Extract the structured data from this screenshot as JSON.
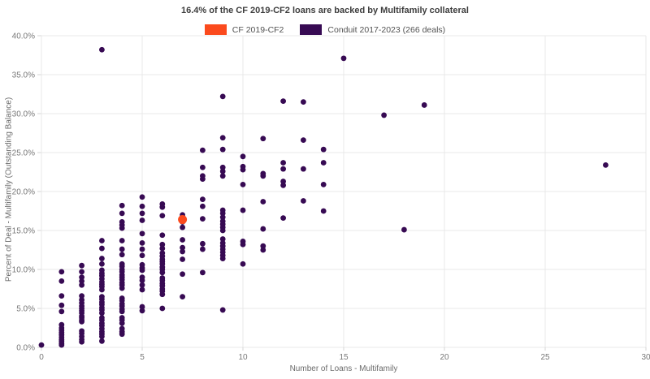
{
  "title": "16.4% of the CF 2019-CF2 loans are backed by Multifamily collateral",
  "legend": {
    "cf_label": "CF 2019-CF2",
    "conduit_label": "Conduit 2017-2023 (266 deals)"
  },
  "colors": {
    "cf": "#fb4a1d",
    "conduit": "#370a53",
    "grid": "#e8e8e8",
    "tick_mark": "#d4d4d4",
    "tick_text": "#787878"
  },
  "chart_data": {
    "type": "scatter",
    "title": "16.4% of the CF 2019-CF2 loans are backed by Multifamily collateral",
    "xlabel": "Number of Loans - Multifamily",
    "ylabel": "Percent of Deal - Multifamily (Outstanding Balance)",
    "xlim": [
      0,
      30
    ],
    "ylim": [
      0,
      40
    ],
    "x_ticks": [
      0,
      5,
      10,
      15,
      20,
      25,
      30
    ],
    "y_ticks": [
      0,
      5,
      10,
      15,
      20,
      25,
      30,
      35,
      40
    ],
    "y_tick_format": "percent_one_decimal",
    "grid": true,
    "legend_position": "top-center",
    "series": [
      {
        "name": "CF 2019-CF2",
        "color": "#fb4a1d",
        "marker_radius": 5.5,
        "points": [
          [
            7,
            16.4
          ]
        ]
      },
      {
        "name": "Conduit 2017-2023 (266 deals)",
        "color": "#370a53",
        "marker_radius": 3.4,
        "points": [
          [
            0,
            0.3
          ],
          [
            1,
            9.7
          ],
          [
            1,
            8.5
          ],
          [
            1,
            6.6
          ],
          [
            1,
            5.4
          ],
          [
            1,
            4.6
          ],
          [
            1,
            2.9
          ],
          [
            1,
            2.5
          ],
          [
            1,
            2.2
          ],
          [
            1,
            1.9
          ],
          [
            1,
            1.6
          ],
          [
            1,
            1.3
          ],
          [
            1,
            1.0
          ],
          [
            1,
            0.8
          ],
          [
            1,
            0.5
          ],
          [
            1,
            0.3
          ],
          [
            2,
            10.5
          ],
          [
            2,
            9.7
          ],
          [
            2,
            9.0
          ],
          [
            2,
            8.5
          ],
          [
            2,
            8.0
          ],
          [
            2,
            6.6
          ],
          [
            2,
            6.1
          ],
          [
            2,
            5.7
          ],
          [
            2,
            5.3
          ],
          [
            2,
            5.0
          ],
          [
            2,
            4.7
          ],
          [
            2,
            4.4
          ],
          [
            2,
            4.0
          ],
          [
            2,
            3.8
          ],
          [
            2,
            3.5
          ],
          [
            2,
            3.3
          ],
          [
            2,
            2.1
          ],
          [
            2,
            1.8
          ],
          [
            2,
            1.4
          ],
          [
            2,
            1.0
          ],
          [
            2,
            0.7
          ],
          [
            3,
            38.2
          ],
          [
            3,
            13.7
          ],
          [
            3,
            12.7
          ],
          [
            3,
            11.4
          ],
          [
            3,
            10.7
          ],
          [
            3,
            9.9
          ],
          [
            3,
            9.5
          ],
          [
            3,
            9.2
          ],
          [
            3,
            8.8
          ],
          [
            3,
            8.4
          ],
          [
            3,
            8.1
          ],
          [
            3,
            7.8
          ],
          [
            3,
            7.4
          ],
          [
            3,
            6.5
          ],
          [
            3,
            6.2
          ],
          [
            3,
            5.8
          ],
          [
            3,
            5.5
          ],
          [
            3,
            5.1
          ],
          [
            3,
            4.8
          ],
          [
            3,
            4.4
          ],
          [
            3,
            3.8
          ],
          [
            3,
            3.5
          ],
          [
            3,
            3.1
          ],
          [
            3,
            2.8
          ],
          [
            3,
            2.4
          ],
          [
            3,
            2.0
          ],
          [
            3,
            1.7
          ],
          [
            3,
            1.4
          ],
          [
            3,
            0.8
          ],
          [
            4,
            18.2
          ],
          [
            4,
            17.2
          ],
          [
            4,
            16.1
          ],
          [
            4,
            15.7
          ],
          [
            4,
            15.3
          ],
          [
            4,
            13.7
          ],
          [
            4,
            12.6
          ],
          [
            4,
            11.9
          ],
          [
            4,
            10.7
          ],
          [
            4,
            10.4
          ],
          [
            4,
            10.0
          ],
          [
            4,
            9.7
          ],
          [
            4,
            9.3
          ],
          [
            4,
            9.0
          ],
          [
            4,
            8.7
          ],
          [
            4,
            8.3
          ],
          [
            4,
            8.0
          ],
          [
            4,
            7.6
          ],
          [
            4,
            6.3
          ],
          [
            4,
            6.0
          ],
          [
            4,
            5.6
          ],
          [
            4,
            5.3
          ],
          [
            4,
            4.9
          ],
          [
            4,
            4.6
          ],
          [
            4,
            3.8
          ],
          [
            4,
            3.5
          ],
          [
            4,
            3.1
          ],
          [
            4,
            2.4
          ],
          [
            4,
            2.0
          ],
          [
            4,
            1.7
          ],
          [
            5,
            19.3
          ],
          [
            5,
            18.1
          ],
          [
            5,
            17.2
          ],
          [
            5,
            16.3
          ],
          [
            5,
            14.6
          ],
          [
            5,
            13.4
          ],
          [
            5,
            12.6
          ],
          [
            5,
            11.8
          ],
          [
            5,
            10.6
          ],
          [
            5,
            10.2
          ],
          [
            5,
            9.9
          ],
          [
            5,
            9.0
          ],
          [
            5,
            8.6
          ],
          [
            5,
            8.0
          ],
          [
            5,
            7.4
          ],
          [
            5,
            5.2
          ],
          [
            5,
            4.7
          ],
          [
            6,
            18.4
          ],
          [
            6,
            18.0
          ],
          [
            6,
            16.9
          ],
          [
            6,
            14.4
          ],
          [
            6,
            13.2
          ],
          [
            6,
            12.7
          ],
          [
            6,
            12.1
          ],
          [
            6,
            11.7
          ],
          [
            6,
            11.3
          ],
          [
            6,
            11.0
          ],
          [
            6,
            10.7
          ],
          [
            6,
            10.3
          ],
          [
            6,
            10.0
          ],
          [
            6,
            9.6
          ],
          [
            6,
            8.9
          ],
          [
            6,
            8.6
          ],
          [
            6,
            8.2
          ],
          [
            6,
            7.9
          ],
          [
            6,
            7.5
          ],
          [
            6,
            7.2
          ],
          [
            6,
            6.8
          ],
          [
            6,
            5.0
          ],
          [
            7,
            17.0
          ],
          [
            7,
            16.1
          ],
          [
            7,
            15.4
          ],
          [
            7,
            13.8
          ],
          [
            7,
            12.8
          ],
          [
            7,
            12.3
          ],
          [
            7,
            11.3
          ],
          [
            7,
            9.4
          ],
          [
            7,
            6.5
          ],
          [
            8,
            25.3
          ],
          [
            8,
            23.1
          ],
          [
            8,
            22.0
          ],
          [
            8,
            21.6
          ],
          [
            8,
            19.0
          ],
          [
            8,
            18.1
          ],
          [
            8,
            16.5
          ],
          [
            8,
            13.3
          ],
          [
            8,
            12.6
          ],
          [
            8,
            9.6
          ],
          [
            9,
            32.2
          ],
          [
            9,
            26.9
          ],
          [
            9,
            25.4
          ],
          [
            9,
            23.1
          ],
          [
            9,
            22.6
          ],
          [
            9,
            22.0
          ],
          [
            9,
            17.6
          ],
          [
            9,
            17.2
          ],
          [
            9,
            16.7
          ],
          [
            9,
            16.2
          ],
          [
            9,
            15.8
          ],
          [
            9,
            15.4
          ],
          [
            9,
            15.0
          ],
          [
            9,
            13.9
          ],
          [
            9,
            13.4
          ],
          [
            9,
            13.0
          ],
          [
            9,
            12.6
          ],
          [
            9,
            12.2
          ],
          [
            9,
            11.8
          ],
          [
            9,
            11.4
          ],
          [
            9,
            4.8
          ],
          [
            10,
            24.5
          ],
          [
            10,
            23.2
          ],
          [
            10,
            22.8
          ],
          [
            10,
            20.9
          ],
          [
            10,
            17.6
          ],
          [
            10,
            13.6
          ],
          [
            10,
            13.2
          ],
          [
            10,
            10.7
          ],
          [
            11,
            26.8
          ],
          [
            11,
            22.3
          ],
          [
            11,
            22.0
          ],
          [
            11,
            18.7
          ],
          [
            11,
            15.2
          ],
          [
            11,
            13.0
          ],
          [
            11,
            12.5
          ],
          [
            12,
            31.6
          ],
          [
            12,
            23.7
          ],
          [
            12,
            22.9
          ],
          [
            12,
            21.3
          ],
          [
            12,
            20.8
          ],
          [
            12,
            16.6
          ],
          [
            13,
            31.5
          ],
          [
            13,
            26.6
          ],
          [
            13,
            22.9
          ],
          [
            13,
            18.8
          ],
          [
            14,
            25.4
          ],
          [
            14,
            23.7
          ],
          [
            14,
            20.9
          ],
          [
            14,
            17.5
          ],
          [
            15,
            37.1
          ],
          [
            17,
            29.8
          ],
          [
            18,
            15.1
          ],
          [
            19,
            31.1
          ],
          [
            28,
            23.4
          ]
        ]
      }
    ]
  }
}
